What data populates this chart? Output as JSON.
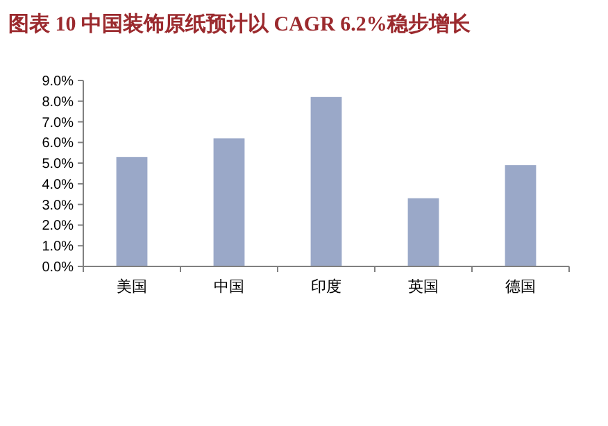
{
  "chart_data": {
    "type": "bar",
    "title": "图表 10  中国装饰原纸预计以 CAGR 6.2%稳步增长",
    "categories": [
      "美国",
      "中国",
      "印度",
      "英国",
      "德国"
    ],
    "values": [
      5.3,
      6.2,
      8.2,
      3.3,
      4.9
    ],
    "color": "#9aa8c8",
    "ylim": [
      0,
      9
    ],
    "yticks": [
      {
        "value": 0,
        "label": "0.0%"
      },
      {
        "value": 1,
        "label": "1.0%"
      },
      {
        "value": 2,
        "label": "2.0%"
      },
      {
        "value": 3,
        "label": "3.0%"
      },
      {
        "value": 4,
        "label": "4.0%"
      },
      {
        "value": 5,
        "label": "5.0%"
      },
      {
        "value": 6,
        "label": "6.0%"
      },
      {
        "value": 7,
        "label": "7.0%"
      },
      {
        "value": 8,
        "label": "8.0%"
      },
      {
        "value": 9,
        "label": "9.0%"
      }
    ],
    "grid": false
  }
}
